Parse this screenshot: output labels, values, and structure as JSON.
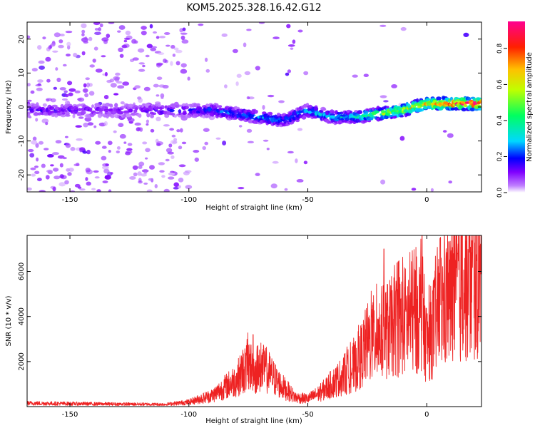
{
  "title": "KOM5.2025.328.16.42.G12",
  "chart_data": [
    {
      "type": "heatmap",
      "name": "spectrogram",
      "xlabel": "Height of straight line (km)",
      "ylabel": "Frequency (Hz)",
      "xlim": [
        -168,
        23
      ],
      "ylim": [
        -25,
        25
      ],
      "xticks": [
        -150,
        -100,
        -50,
        0
      ],
      "yticks": [
        -20,
        -10,
        0,
        10,
        20
      ],
      "colorbar": {
        "label": "Normalized spectral amplitude",
        "range": [
          0,
          0.95
        ],
        "ticks": [
          0.0,
          0.2,
          0.4,
          0.6,
          0.8
        ],
        "tick_labels": [
          "0.0",
          "0.2",
          "0.4",
          "0.6",
          "0.8"
        ],
        "colors": [
          "#ffffff",
          "#a000ff",
          "#0000ff",
          "#00d8ff",
          "#00ff00",
          "#ffff00",
          "#ff6000",
          "#ff0000",
          "#ff00a0"
        ]
      },
      "ridge": [
        {
          "x": -150,
          "f": -1,
          "amp": 0.15
        },
        {
          "x": -130,
          "f": -1,
          "amp": 0.12
        },
        {
          "x": -100,
          "f": -1,
          "amp": 0.18
        },
        {
          "x": -90,
          "f": -1,
          "amp": 0.22
        },
        {
          "x": -80,
          "f": -2,
          "amp": 0.25
        },
        {
          "x": -70,
          "f": -3,
          "amp": 0.28
        },
        {
          "x": -60,
          "f": -4,
          "amp": 0.25
        },
        {
          "x": -50,
          "f": -1,
          "amp": 0.28
        },
        {
          "x": -40,
          "f": -3,
          "amp": 0.3
        },
        {
          "x": -30,
          "f": -3,
          "amp": 0.35
        },
        {
          "x": -20,
          "f": -2,
          "amp": 0.5
        },
        {
          "x": -10,
          "f": -1,
          "amp": 0.6
        },
        {
          "x": 0,
          "f": 1,
          "amp": 0.7
        },
        {
          "x": 10,
          "f": 1,
          "amp": 0.85
        },
        {
          "x": 20,
          "f": 1,
          "amp": 0.9
        }
      ]
    },
    {
      "type": "line",
      "name": "snr",
      "xlabel": "Height of straight line (km)",
      "ylabel": "SNR (10 * v/v)",
      "xlim": [
        -168,
        23
      ],
      "ylim": [
        0,
        7600
      ],
      "xticks": [
        -150,
        -100,
        -50,
        0
      ],
      "yticks": [
        2000,
        4000,
        6000
      ],
      "color": "#ee2222",
      "envelope": [
        {
          "x": -168,
          "y": 150
        },
        {
          "x": -140,
          "y": 120
        },
        {
          "x": -110,
          "y": 100
        },
        {
          "x": -100,
          "y": 200
        },
        {
          "x": -90,
          "y": 500
        },
        {
          "x": -80,
          "y": 1200
        },
        {
          "x": -75,
          "y": 1900
        },
        {
          "x": -72,
          "y": 1500
        },
        {
          "x": -68,
          "y": 1700
        },
        {
          "x": -62,
          "y": 1000
        },
        {
          "x": -55,
          "y": 400
        },
        {
          "x": -50,
          "y": 350
        },
        {
          "x": -45,
          "y": 600
        },
        {
          "x": -40,
          "y": 1000
        },
        {
          "x": -30,
          "y": 1800
        },
        {
          "x": -25,
          "y": 2800
        },
        {
          "x": -20,
          "y": 3200
        },
        {
          "x": -15,
          "y": 3500
        },
        {
          "x": -10,
          "y": 3800
        },
        {
          "x": -5,
          "y": 4000
        },
        {
          "x": -2,
          "y": 4300
        },
        {
          "x": 0,
          "y": 2800
        },
        {
          "x": 5,
          "y": 4200
        },
        {
          "x": 10,
          "y": 4800
        },
        {
          "x": 15,
          "y": 5300
        },
        {
          "x": 20,
          "y": 5600
        },
        {
          "x": 23,
          "y": 5700
        }
      ],
      "peaks": [
        {
          "x": -73,
          "y": 3200
        },
        {
          "x": -18,
          "y": 7000
        },
        {
          "x": -2,
          "y": 7600
        },
        {
          "x": 13,
          "y": 6800
        }
      ]
    }
  ]
}
